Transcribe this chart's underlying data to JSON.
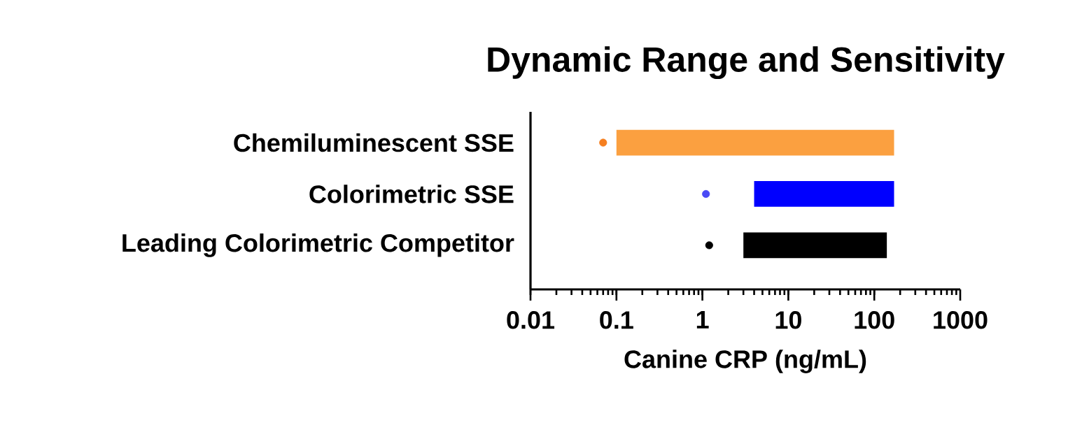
{
  "chart_data": {
    "type": "bar",
    "orientation": "horizontal",
    "title": "Dynamic Range and Sensitivity",
    "xlabel": "Canine CRP (ng/mL)",
    "categories": [
      "Chemiluminescent SSE",
      "Colorimetric SSE",
      "Leading Colorimetric Competitor"
    ],
    "log": "x",
    "xlim": [
      0.01,
      1000
    ],
    "xticks": [
      0.01,
      0.1,
      1,
      10,
      100,
      1000
    ],
    "series": [
      {
        "colors": [
          "#fba040",
          "#0000ff",
          "#000000"
        ],
        "base": [
          0.1,
          4,
          3
        ],
        "values": [
          169.9,
          166,
          137
        ]
      },
      {
        "type": "scatter",
        "marker": "circle",
        "colors": [
          "#f57f20",
          "#4a4af5",
          "#000000"
        ],
        "values": [
          0.07,
          1.1,
          1.2
        ]
      }
    ]
  }
}
